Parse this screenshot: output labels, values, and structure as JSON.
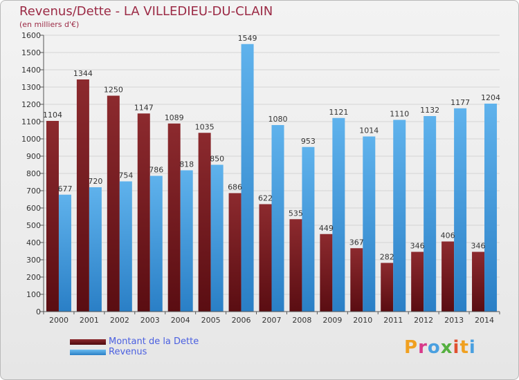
{
  "chart_data": {
    "type": "bar",
    "title": "Revenus/Dette - LA VILLEDIEU-DU-CLAIN",
    "subtitle": "(en milliers d'€)",
    "categories": [
      "2000",
      "2001",
      "2002",
      "2003",
      "2004",
      "2005",
      "2006",
      "2007",
      "2008",
      "2009",
      "2010",
      "2011",
      "2012",
      "2013",
      "2014"
    ],
    "series": [
      {
        "name": "Montant de la Dette",
        "color": "#7a1c22",
        "values": [
          1104,
          1344,
          1250,
          1147,
          1089,
          1035,
          686,
          622,
          535,
          449,
          367,
          282,
          346,
          406,
          346
        ]
      },
      {
        "name": "Revenus",
        "color": "#4fa4e2",
        "values": [
          677,
          720,
          754,
          786,
          818,
          850,
          1549,
          1080,
          953,
          1121,
          1014,
          1110,
          1132,
          1177,
          1204
        ]
      }
    ],
    "ylim": [
      0,
      1600
    ],
    "yticks": [
      0,
      100,
      200,
      300,
      400,
      500,
      600,
      700,
      800,
      900,
      1000,
      1100,
      1200,
      1300,
      1400,
      1500,
      1600
    ],
    "grid": true,
    "legend_position": "bottom-left"
  },
  "logo": {
    "text": "Proxiti",
    "colors": [
      "#f0a020",
      "#d83a8a",
      "#4aa0e0",
      "#55b040",
      "#e05030",
      "#f0a020",
      "#4aa0e0"
    ]
  }
}
